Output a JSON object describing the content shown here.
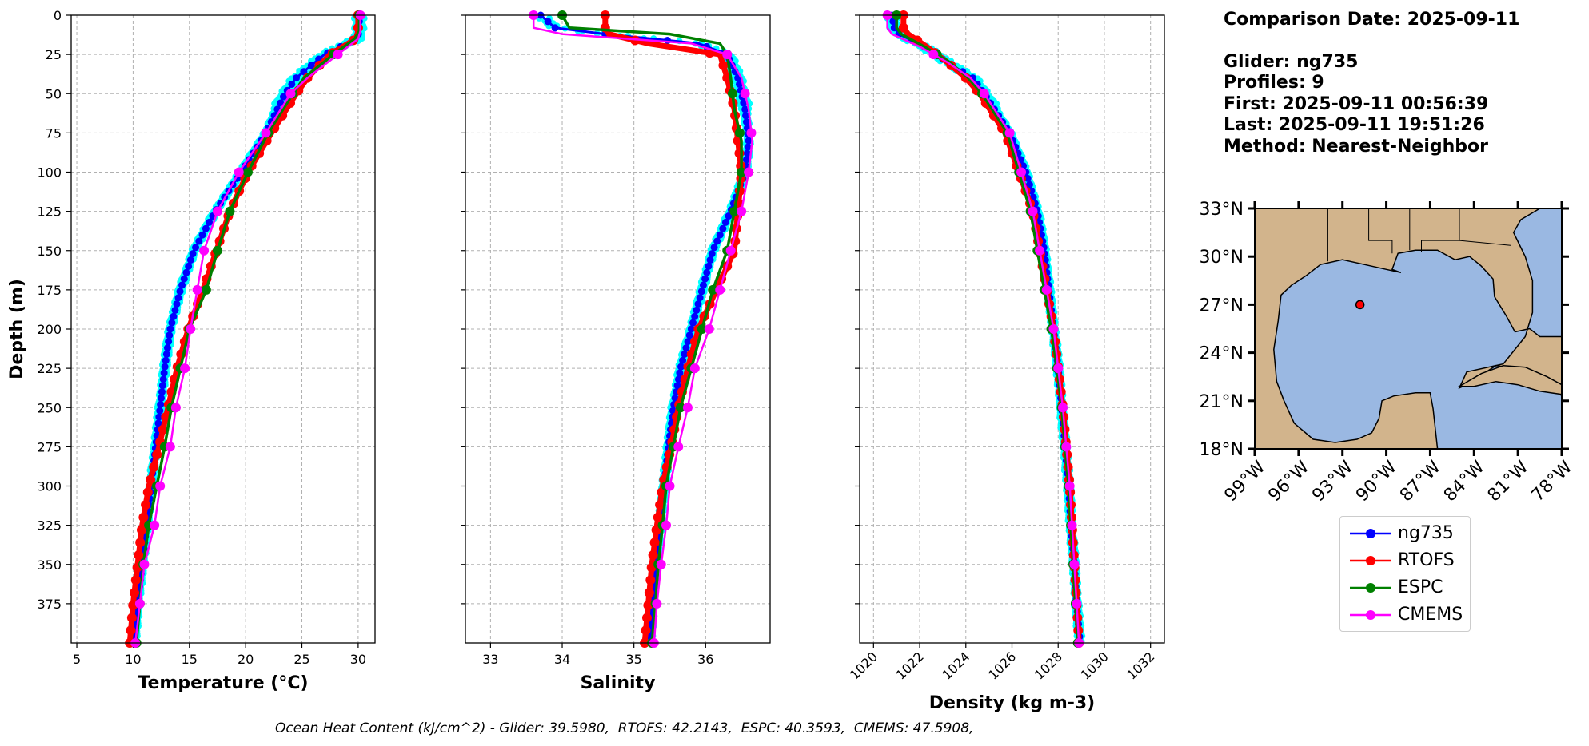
{
  "info": {
    "comparison_date": "Comparison Date: 2025-09-11",
    "glider": "Glider: ng735",
    "profiles": "Profiles: 9",
    "first": "First: 2025-09-11 00:56:39",
    "last": "Last: 2025-09-11 19:51:26",
    "method": "Method: Nearest-Neighbor"
  },
  "footer": "Ocean Heat Content (kJ/cm^2) - Glider: 39.5980,  RTOFS: 42.2143,  ESPC: 40.3593,  CMEMS: 47.5908,",
  "colors": {
    "ng735": "#0000ff",
    "RTOFS": "#ff0000",
    "ESPC": "#008000",
    "CMEMS": "#ff00ff",
    "raw": "#00ffff",
    "ocean": "#9ab8e2",
    "land": "#d2b48c"
  },
  "legend": [
    "ng735",
    "RTOFS",
    "ESPC",
    "CMEMS"
  ],
  "chart_data": [
    {
      "type": "line",
      "xlabel": "Temperature (°C)",
      "ylabel": "Depth (m)",
      "xlim": [
        4.5,
        31.5
      ],
      "ylim": [
        400,
        0
      ],
      "xticks": [
        "5",
        "10",
        "15",
        "20",
        "25",
        "30"
      ],
      "yticks": [
        "0",
        "25",
        "50",
        "75",
        "100",
        "125",
        "150",
        "175",
        "200",
        "225",
        "250",
        "275",
        "300",
        "325",
        "350",
        "375"
      ],
      "grid": true,
      "series": [
        {
          "name": "ng735",
          "depth": [
            0,
            10,
            15,
            25,
            40,
            50,
            75,
            100,
            125,
            150,
            175,
            200,
            225,
            250,
            275,
            300,
            325,
            350,
            375,
            400
          ],
          "values": [
            30.1,
            30.1,
            29.9,
            27.0,
            24.5,
            23.5,
            21.8,
            19.6,
            17.3,
            15.4,
            14.2,
            13.3,
            12.8,
            12.4,
            12.0,
            11.6,
            11.2,
            10.8,
            10.4,
            10.1
          ]
        },
        {
          "name": "RTOFS",
          "depth": [
            0,
            10,
            15,
            25,
            40,
            50,
            75,
            100,
            125,
            150,
            175,
            200,
            225,
            250,
            275,
            300,
            325,
            350,
            375,
            400
          ],
          "values": [
            30.0,
            30.0,
            29.8,
            27.5,
            25.5,
            24.5,
            22.3,
            20.2,
            18.6,
            17.4,
            16.2,
            14.9,
            13.9,
            13.1,
            12.3,
            11.4,
            10.8,
            10.4,
            10.0,
            9.7
          ]
        },
        {
          "name": "ESPC",
          "depth": [
            0,
            10,
            15,
            25,
            40,
            50,
            75,
            100,
            125,
            150,
            175,
            200,
            225,
            250,
            275,
            300,
            325,
            350,
            375,
            400
          ],
          "values": [
            30.1,
            30.1,
            29.7,
            27.8,
            25.2,
            24.2,
            22.0,
            20.2,
            18.6,
            17.5,
            16.5,
            15.0,
            14.2,
            13.4,
            12.8,
            12.1,
            11.4,
            10.9,
            10.6,
            10.3
          ]
        },
        {
          "name": "CMEMS",
          "depth": [
            0,
            10,
            15,
            25,
            40,
            50,
            75,
            100,
            125,
            150,
            175,
            200,
            225,
            250,
            275,
            300,
            325,
            350,
            375,
            400
          ],
          "values": [
            30.2,
            30.2,
            30.0,
            28.2,
            25.5,
            24.0,
            21.8,
            19.4,
            17.5,
            16.3,
            15.7,
            15.1,
            14.6,
            13.8,
            13.3,
            12.4,
            11.9,
            11.0,
            10.6,
            10.2
          ]
        }
      ]
    },
    {
      "type": "line",
      "xlabel": "Salinity",
      "xlim": [
        32.65,
        36.9
      ],
      "ylim": [
        400,
        0
      ],
      "xticks": [
        "33",
        "34",
        "35",
        "36"
      ],
      "grid": true,
      "series": [
        {
          "name": "ng735",
          "depth": [
            0,
            8,
            12,
            18,
            25,
            40,
            60,
            80,
            100,
            125,
            150,
            175,
            200,
            225,
            250,
            275,
            300,
            325,
            350,
            375,
            400
          ],
          "values": [
            33.7,
            33.9,
            34.6,
            35.9,
            36.3,
            36.45,
            36.55,
            36.6,
            36.55,
            36.35,
            36.1,
            35.95,
            35.8,
            35.65,
            35.55,
            35.48,
            35.42,
            35.36,
            35.3,
            35.26,
            35.22
          ]
        },
        {
          "name": "RTOFS",
          "depth": [
            0,
            8,
            12,
            18,
            25,
            40,
            60,
            80,
            100,
            125,
            150,
            175,
            200,
            225,
            250,
            275,
            300,
            325,
            350,
            375,
            400
          ],
          "values": [
            34.6,
            34.6,
            34.65,
            35.2,
            36.2,
            36.3,
            36.4,
            36.45,
            36.5,
            36.45,
            36.4,
            36.15,
            35.9,
            35.75,
            35.62,
            35.52,
            35.4,
            35.32,
            35.25,
            35.2,
            35.15
          ]
        },
        {
          "name": "ESPC",
          "depth": [
            0,
            8,
            12,
            18,
            25,
            40,
            60,
            80,
            100,
            125,
            150,
            175,
            200,
            225,
            250,
            275,
            300,
            325,
            350,
            375,
            400
          ],
          "values": [
            34.0,
            34.1,
            35.5,
            36.2,
            36.3,
            36.35,
            36.4,
            36.5,
            36.5,
            36.4,
            36.3,
            36.1,
            35.95,
            35.8,
            35.65,
            35.55,
            35.45,
            35.4,
            35.34,
            35.3,
            35.25
          ]
        },
        {
          "name": "CMEMS",
          "depth": [
            0,
            8,
            12,
            18,
            25,
            40,
            60,
            80,
            100,
            125,
            150,
            175,
            200,
            225,
            250,
            275,
            300,
            325,
            350,
            375,
            400
          ],
          "values": [
            33.6,
            33.6,
            34.0,
            35.8,
            36.3,
            36.5,
            36.6,
            36.65,
            36.6,
            36.5,
            36.35,
            36.2,
            36.05,
            35.85,
            35.75,
            35.62,
            35.5,
            35.45,
            35.38,
            35.32,
            35.28
          ]
        }
      ]
    },
    {
      "type": "line",
      "xlabel": "Density (kg m-3)",
      "xlim": [
        1019.4,
        1032.6
      ],
      "ylim": [
        400,
        0
      ],
      "xticks": [
        "1020",
        "1022",
        "1024",
        "1026",
        "1028",
        "1030",
        "1032"
      ],
      "grid": true,
      "series": [
        {
          "name": "ng735",
          "depth": [
            0,
            8,
            12,
            20,
            30,
            40,
            50,
            75,
            100,
            125,
            150,
            175,
            200,
            225,
            250,
            275,
            300,
            325,
            350,
            375,
            400
          ],
          "values": [
            1020.8,
            1020.9,
            1021.1,
            1022.2,
            1023.2,
            1024.3,
            1024.8,
            1025.9,
            1026.6,
            1027.1,
            1027.4,
            1027.6,
            1027.8,
            1028.0,
            1028.15,
            1028.3,
            1028.45,
            1028.55,
            1028.7,
            1028.8,
            1028.95
          ]
        },
        {
          "name": "RTOFS",
          "depth": [
            0,
            8,
            12,
            20,
            30,
            40,
            50,
            75,
            100,
            125,
            150,
            175,
            200,
            225,
            250,
            275,
            300,
            325,
            350,
            375,
            400
          ],
          "values": [
            1021.3,
            1021.3,
            1021.5,
            1022.3,
            1023.2,
            1024.0,
            1024.6,
            1025.7,
            1026.3,
            1026.9,
            1027.2,
            1027.5,
            1027.8,
            1028.0,
            1028.2,
            1028.35,
            1028.5,
            1028.6,
            1028.7,
            1028.8,
            1028.9
          ]
        },
        {
          "name": "ESPC",
          "depth": [
            0,
            8,
            12,
            20,
            30,
            40,
            50,
            75,
            100,
            125,
            150,
            175,
            200,
            225,
            250,
            275,
            300,
            325,
            350,
            375,
            400
          ],
          "values": [
            1021.0,
            1021.0,
            1021.2,
            1022.2,
            1023.3,
            1024.1,
            1024.7,
            1025.8,
            1026.3,
            1026.8,
            1027.1,
            1027.4,
            1027.7,
            1027.95,
            1028.15,
            1028.3,
            1028.45,
            1028.55,
            1028.65,
            1028.75,
            1028.85
          ]
        },
        {
          "name": "CMEMS",
          "depth": [
            0,
            8,
            12,
            20,
            30,
            40,
            50,
            75,
            100,
            125,
            150,
            175,
            200,
            225,
            250,
            275,
            300,
            325,
            350,
            375,
            400
          ],
          "values": [
            1020.6,
            1020.6,
            1020.8,
            1022.0,
            1023.2,
            1024.2,
            1024.8,
            1025.9,
            1026.4,
            1026.9,
            1027.2,
            1027.5,
            1027.8,
            1028.0,
            1028.2,
            1028.35,
            1028.5,
            1028.6,
            1028.7,
            1028.8,
            1028.9
          ]
        }
      ]
    },
    {
      "type": "map",
      "lat_ticks": [
        "18°N",
        "21°N",
        "24°N",
        "27°N",
        "30°N",
        "33°N"
      ],
      "lon_ticks": [
        "99°W",
        "96°W",
        "93°W",
        "90°W",
        "87°W",
        "84°W",
        "81°W",
        "78°W"
      ],
      "lat_range": [
        18,
        33
      ],
      "lon_range": [
        -99,
        -78
      ],
      "marker": {
        "lat": 27.0,
        "lon": -91.8
      }
    }
  ]
}
